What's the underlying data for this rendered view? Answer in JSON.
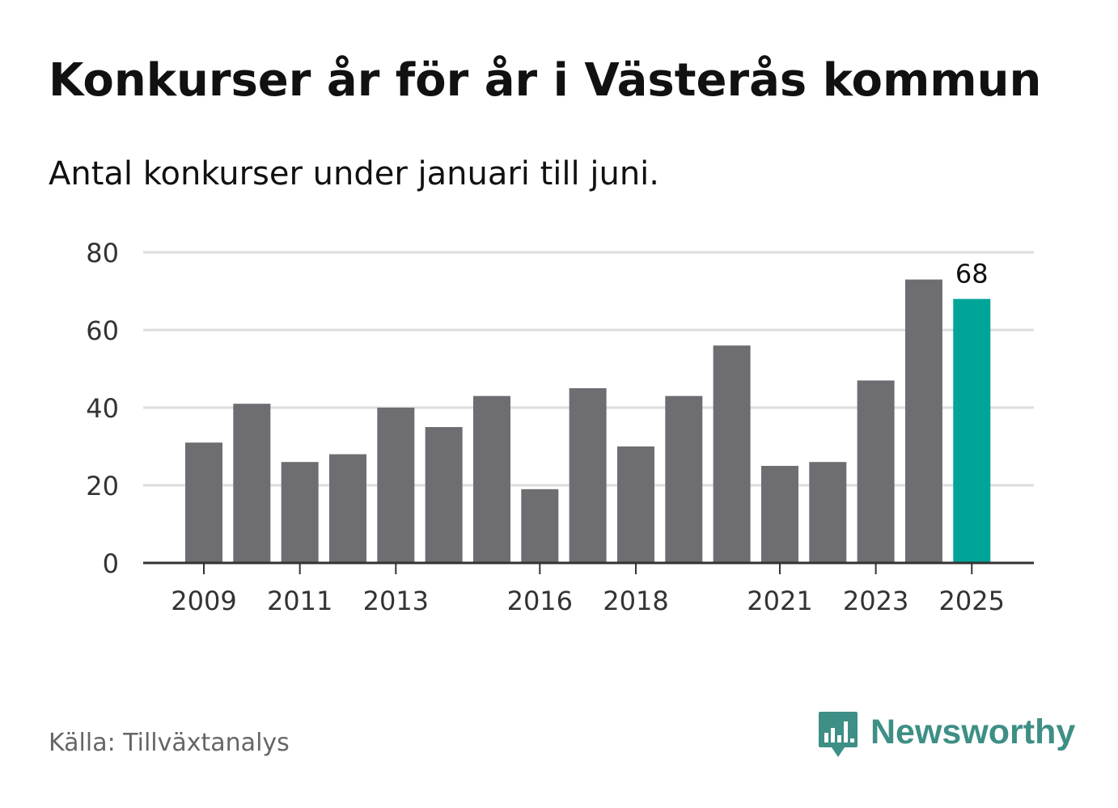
{
  "header": {
    "title": "Konkurser år för år i Västerås kommun",
    "subtitle": "Antal konkurser under januari till juni."
  },
  "footer": {
    "source": "Källa: Tillväxtanalys",
    "brand_name": "Newsworthy",
    "brand_icon": "bar-chart-speech-bubble-icon"
  },
  "colors": {
    "bar": "#6e6d72",
    "highlight": "#00a499",
    "grid": "#dddddd",
    "axis": "#333333",
    "brand": "#3e8f85"
  },
  "chart_data": {
    "type": "bar",
    "title": "Konkurser år för år i Västerås kommun",
    "subtitle": "Antal konkurser under januari till juni.",
    "categories": [
      "2009",
      "2010",
      "2011",
      "2012",
      "2013",
      "2014",
      "2015",
      "2016",
      "2017",
      "2018",
      "2019",
      "2020",
      "2021",
      "2022",
      "2023",
      "2024",
      "2025"
    ],
    "values": [
      31,
      41,
      26,
      28,
      40,
      35,
      43,
      19,
      45,
      30,
      43,
      56,
      25,
      26,
      47,
      73,
      68
    ],
    "xlabel": "",
    "ylabel": "",
    "ylim": [
      0,
      80
    ],
    "yticks": [
      0,
      20,
      40,
      60,
      80
    ],
    "xtick_labels": [
      "2009",
      "2011",
      "2013",
      "2016",
      "2018",
      "2021",
      "2023",
      "2025"
    ],
    "highlight_category": "2025",
    "highlight_label": "68",
    "grid": true,
    "legend": "none"
  }
}
